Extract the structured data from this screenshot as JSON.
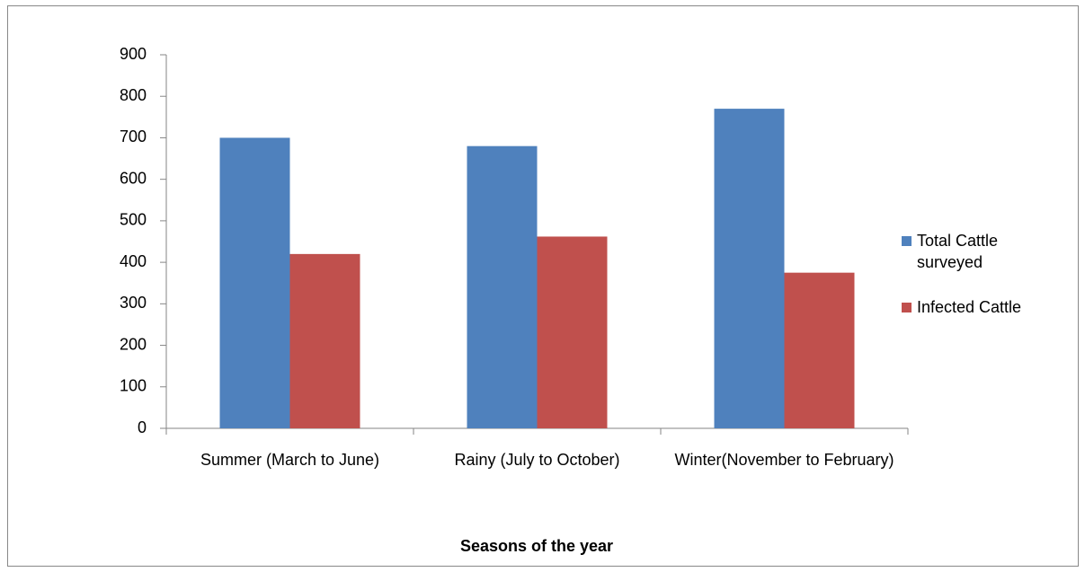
{
  "chart_data": {
    "type": "bar",
    "x_label": "Seasons of the year",
    "categories": [
      "Summer (March to June)",
      "Rainy (July to October)",
      "Winter(November to February)"
    ],
    "series": [
      {
        "name": "Total Cattle surveyed",
        "color": "#4f81bd",
        "values": [
          700,
          680,
          770
        ]
      },
      {
        "name": "Infected Cattle",
        "color": "#c0504d",
        "values": [
          420,
          462,
          375
        ]
      }
    ],
    "ylim": [
      0,
      900
    ],
    "yticks": [
      0,
      100,
      200,
      300,
      400,
      500,
      600,
      700,
      800,
      900
    ],
    "legend": "right"
  }
}
